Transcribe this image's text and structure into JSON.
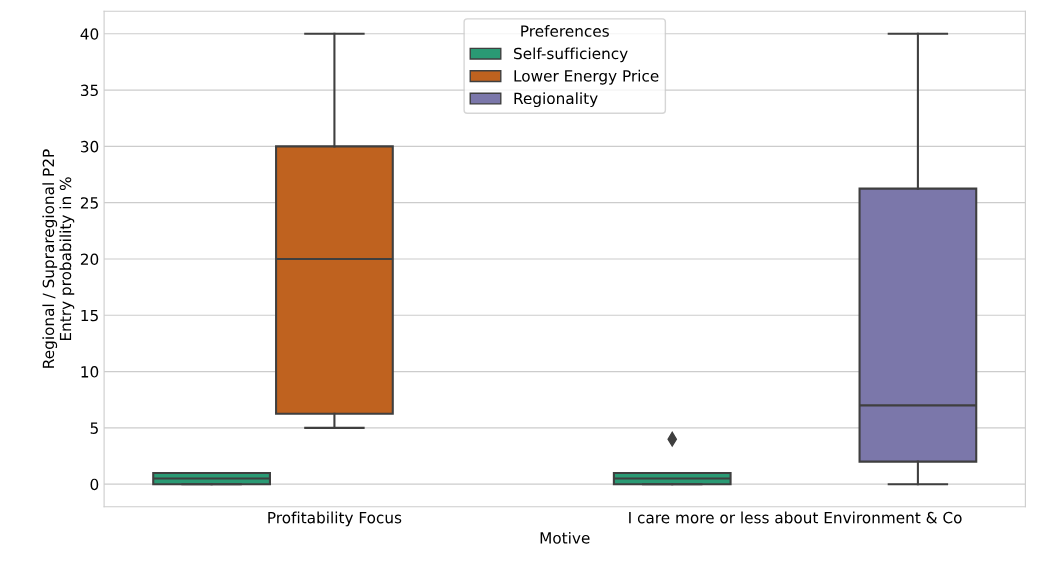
{
  "chart_data": {
    "type": "box",
    "xlabel": "Motive",
    "ylabel": "Regional / Supraregional P2P\nEntry probability in %",
    "categories": [
      "Profitability Focus",
      "I care more or less about Environment & Co"
    ],
    "legend_title": "Preferences",
    "legend": "top center",
    "grid": "y",
    "ylim": [
      -2,
      42
    ],
    "yticks": [
      0,
      5,
      10,
      15,
      20,
      25,
      30,
      35,
      40
    ],
    "series": [
      {
        "name": "Self-sufficiency",
        "color": "#2a9a74",
        "boxes": [
          {
            "low": 0,
            "q1": 0,
            "median": 0.5,
            "q3": 1,
            "high": 1
          },
          {
            "low": 0,
            "q1": 0,
            "median": 0.5,
            "q3": 1,
            "high": 1,
            "outliers": [
              4
            ]
          }
        ]
      },
      {
        "name": "Lower Energy Price",
        "color": "#bf621f",
        "boxes": [
          {
            "low": 5,
            "q1": 6.25,
            "median": 20,
            "q3": 30,
            "high": 40
          },
          null
        ]
      },
      {
        "name": "Regionality",
        "color": "#7b77aa",
        "boxes": [
          null,
          {
            "low": 0,
            "q1": 2,
            "median": 7,
            "q3": 26.25,
            "high": 40
          }
        ]
      }
    ]
  }
}
